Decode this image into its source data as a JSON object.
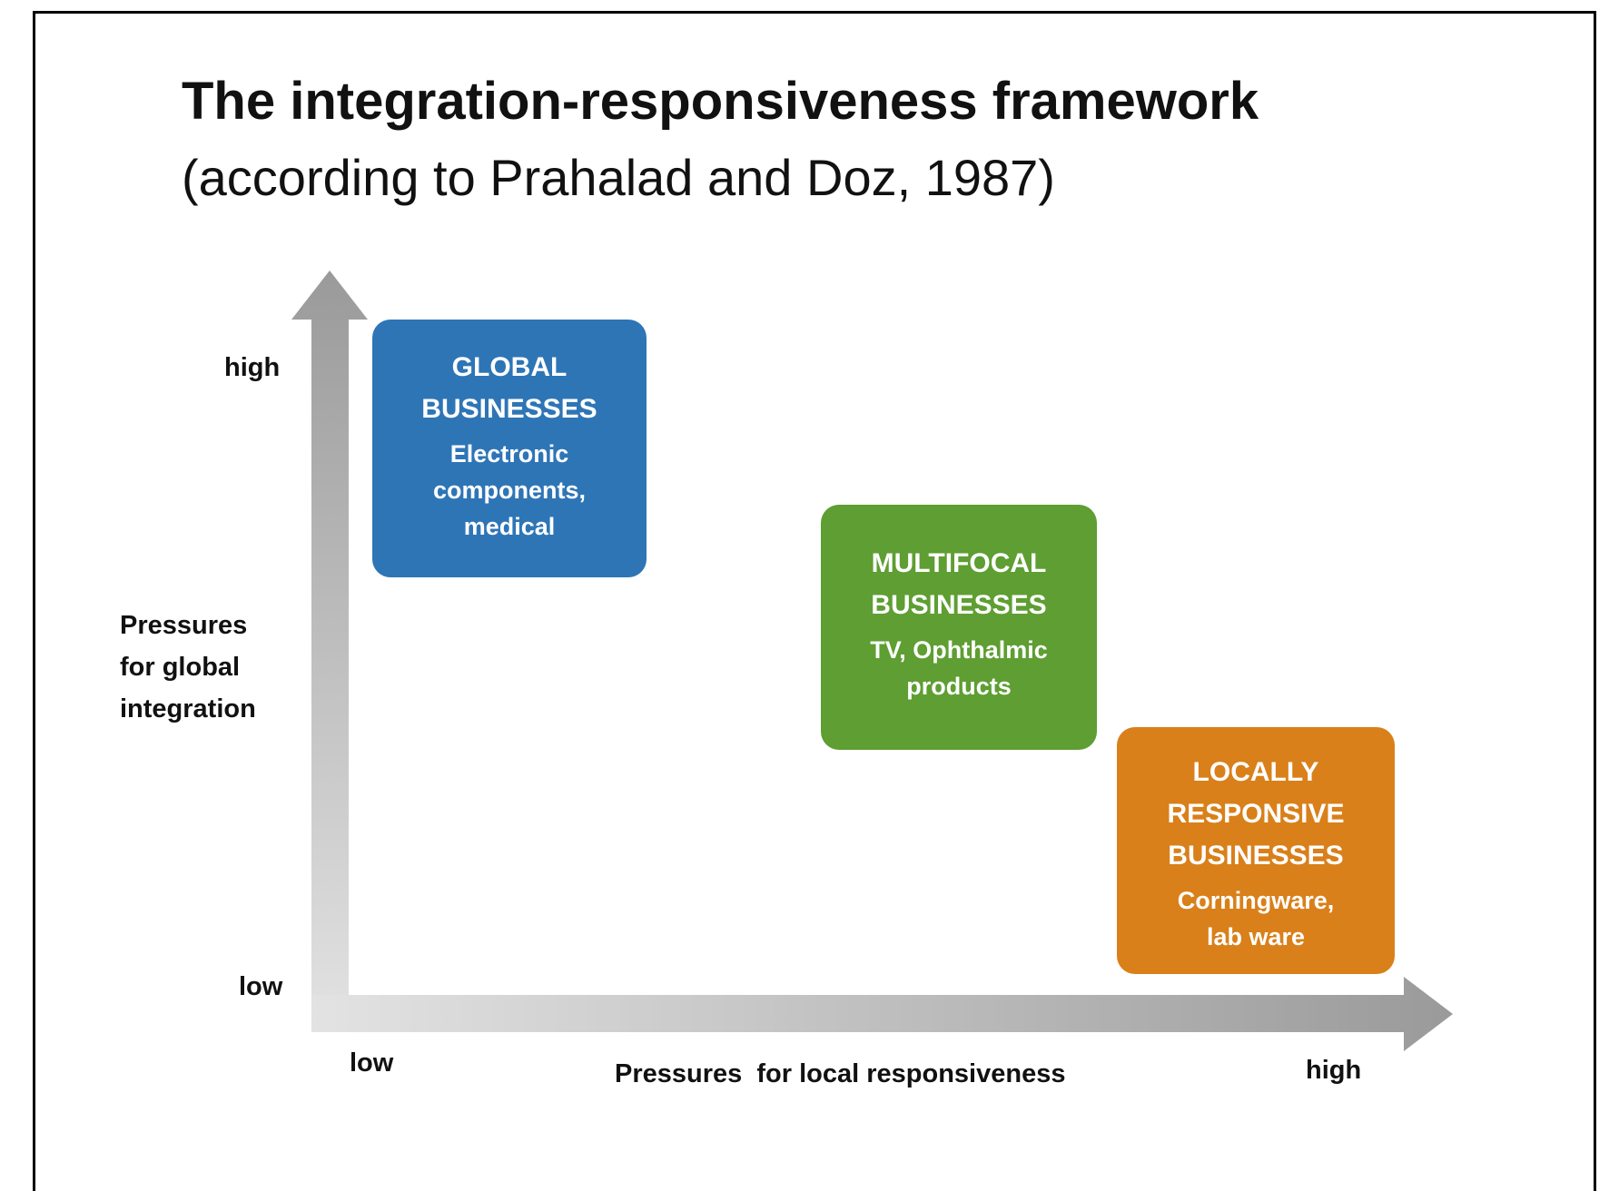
{
  "title": "The integration-responsiveness framework",
  "subtitle": "(according to Prahalad and Doz, 1987)",
  "colors": {
    "global": "#2E75B6",
    "multifocal": "#5E9E32",
    "local": "#D9801A",
    "axis_light": "#e3e3e3",
    "axis_dark": "#9a9a9a"
  },
  "y_axis": {
    "label": [
      "Pressures",
      "for global",
      "integration"
    ],
    "high": "high",
    "low": "low"
  },
  "x_axis": {
    "label": "Pressures  for local responsiveness",
    "low": "low",
    "high": "high"
  },
  "boxes": {
    "global": {
      "heading": [
        "GLOBAL",
        "BUSINESSES"
      ],
      "examples": [
        "Electronic",
        "components,",
        "medical"
      ]
    },
    "multifocal": {
      "heading": [
        "MULTIFOCAL",
        "BUSINESSES"
      ],
      "examples": [
        "TV, Ophthalmic",
        "products"
      ]
    },
    "local": {
      "heading": [
        "LOCALLY",
        "RESPONSIVE",
        "BUSINESSES"
      ],
      "examples": [
        "Corningware,",
        "lab ware"
      ]
    }
  }
}
